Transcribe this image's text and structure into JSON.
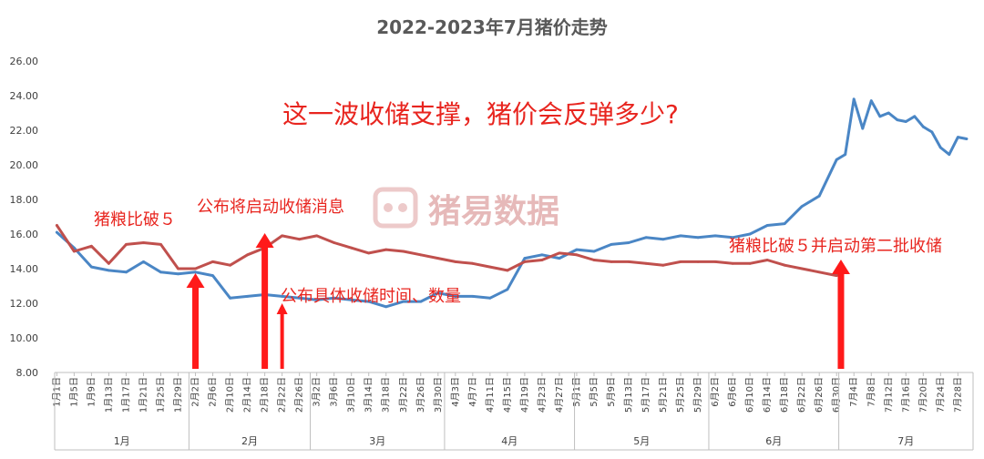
{
  "chart_data": {
    "type": "line",
    "title": "2022-2023年7月猪价走势",
    "ylim": [
      8,
      26
    ],
    "yticks": [
      "8.00",
      "10.00",
      "12.00",
      "14.00",
      "16.00",
      "18.00",
      "20.00",
      "22.00",
      "24.00",
      "26.00"
    ],
    "grid": false,
    "legend": "none",
    "x_tick_labels": [
      "1月1日",
      "1月5日",
      "1月9日",
      "1月13日",
      "1月17日",
      "1月21日",
      "1月25日",
      "1月29日",
      "2月2日",
      "2月6日",
      "2月10日",
      "2月14日",
      "2月18日",
      "2月22日",
      "2月26日",
      "3月2日",
      "3月6日",
      "3月10日",
      "3月14日",
      "3月18日",
      "3月22日",
      "3月26日",
      "3月30日",
      "4月3日",
      "4月7日",
      "4月11日",
      "4月15日",
      "4月19日",
      "4月23日",
      "4月27日",
      "5月1日",
      "5月5日",
      "5月9日",
      "5月13日",
      "5月17日",
      "5月21日",
      "5月25日",
      "5月29日",
      "6月2日",
      "6月6日",
      "6月10日",
      "6月14日",
      "6月18日",
      "6月22日",
      "6月26日",
      "6月30日",
      "7月4日",
      "7月8日",
      "7月12日",
      "7月16日",
      "7月20日",
      "7月24日",
      "7月28日"
    ],
    "months": [
      "1月",
      "2月",
      "3月",
      "4月",
      "5月",
      "6月",
      "7月"
    ],
    "series": [
      {
        "color": "#4a86c5",
        "x": [
          "1月1日",
          "1月5日",
          "1月9日",
          "1月13日",
          "1月17日",
          "1月21日",
          "1月25日",
          "1月29日",
          "2月2日",
          "2月6日",
          "2月10日",
          "2月14日",
          "2月18日",
          "2月22日",
          "2月26日",
          "3月2日",
          "3月6日",
          "3月10日",
          "3月14日",
          "3月18日",
          "3月22日",
          "3月26日",
          "3月30日",
          "4月3日",
          "4月7日",
          "4月11日",
          "4月15日",
          "4月19日",
          "4月23日",
          "4月27日",
          "5月1日",
          "5月5日",
          "5月9日",
          "5月13日",
          "5月17日",
          "5月21日",
          "5月25日",
          "5月29日",
          "6月2日",
          "6月6日",
          "6月10日",
          "6月14日",
          "6月18日",
          "6月22日",
          "6月26日",
          "6月30日",
          "7月2日",
          "7月4日",
          "7月6日",
          "7月8日",
          "7月10日",
          "7月12日",
          "7月14日",
          "7月16日",
          "7月18日",
          "7月20日",
          "7月22日",
          "7月24日",
          "7月26日",
          "7月28日",
          "7月30日"
        ],
        "values": [
          16.1,
          15.2,
          14.1,
          13.9,
          13.8,
          14.4,
          13.8,
          13.7,
          13.8,
          13.6,
          12.3,
          12.4,
          12.5,
          12.4,
          12.3,
          12.2,
          12.3,
          12.2,
          12.1,
          11.8,
          12.1,
          12.1,
          12.6,
          12.4,
          12.4,
          12.3,
          12.8,
          14.6,
          14.8,
          14.6,
          15.1,
          15.0,
          15.4,
          15.5,
          15.8,
          15.7,
          15.9,
          15.8,
          15.9,
          15.8,
          16.0,
          16.5,
          16.6,
          17.6,
          18.2,
          20.3,
          20.6,
          23.8,
          22.1,
          23.7,
          22.8,
          23.0,
          22.6,
          22.5,
          22.8,
          22.2,
          21.9,
          21.0,
          20.6,
          21.6,
          21.5
        ]
      },
      {
        "color": "#c0504d",
        "x": [
          "1月1日",
          "1月5日",
          "1月9日",
          "1月13日",
          "1月17日",
          "1月21日",
          "1月25日",
          "1月29日",
          "2月2日",
          "2月6日",
          "2月10日",
          "2月14日",
          "2月18日",
          "2月22日",
          "2月26日",
          "3月2日",
          "3月6日",
          "3月10日",
          "3月14日",
          "3月18日",
          "3月22日",
          "3月26日",
          "3月30日",
          "4月3日",
          "4月7日",
          "4月11日",
          "4月15日",
          "4月19日",
          "4月23日",
          "4月27日",
          "5月1日",
          "5月5日",
          "5月9日",
          "5月13日",
          "5月17日",
          "5月21日",
          "5月25日",
          "5月29日",
          "6月2日",
          "6月6日",
          "6月10日",
          "6月14日",
          "6月18日",
          "6月22日",
          "6月26日",
          "6月30日",
          "7月1日"
        ],
        "values": [
          16.5,
          15.0,
          15.3,
          14.3,
          15.4,
          15.5,
          15.4,
          14.0,
          14.0,
          14.4,
          14.2,
          14.8,
          15.2,
          15.9,
          15.7,
          15.9,
          15.5,
          15.2,
          14.9,
          15.1,
          15.0,
          14.8,
          14.6,
          14.4,
          14.3,
          14.1,
          13.9,
          14.4,
          14.5,
          14.9,
          14.8,
          14.5,
          14.4,
          14.4,
          14.3,
          14.2,
          14.4,
          14.4,
          14.4,
          14.3,
          14.3,
          14.5,
          14.2,
          14.0,
          13.8,
          13.6,
          13.9
        ]
      }
    ],
    "annotations": [
      {
        "id": "a1",
        "text": "这一波收储支撑，猪价会反弹多少?"
      },
      {
        "id": "a2",
        "text": "猪粮比破５"
      },
      {
        "id": "a3",
        "text": "公布将启动收储消息"
      },
      {
        "id": "a4",
        "text": "公布具体收储时间、数量"
      },
      {
        "id": "a5",
        "text": "猪粮比破５并启动第二批收储"
      }
    ],
    "arrows_at": [
      "2月2日",
      "2月18日",
      "2月22日",
      "7月1日"
    ],
    "watermark": "猪易数据"
  }
}
